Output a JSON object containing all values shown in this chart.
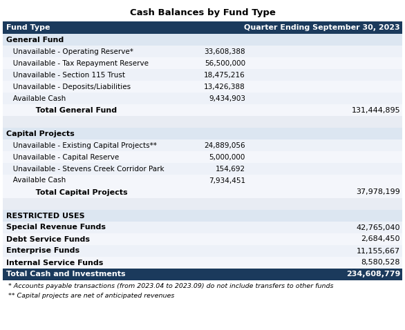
{
  "title": "Cash Balances by Fund Type",
  "header": [
    "Fund Type",
    "Quarter Ending September 30, 2023"
  ],
  "header_bg": "#1b3a5c",
  "header_fg": "#ffffff",
  "section_bg": "#dce6f1",
  "row_light": "#edf1f8",
  "row_white": "#f4f6fb",
  "subtotal_bg": "#f4f6fb",
  "blank_bg": "#e8ecf3",
  "total_bg": "#1b3a5c",
  "total_fg": "#ffffff",
  "rows": [
    {
      "type": "section_header",
      "label": "General Fund",
      "value": null,
      "right_value": null
    },
    {
      "type": "item",
      "label": "   Unavailable - Operating Reserve*",
      "value": "33,608,388",
      "right_value": null
    },
    {
      "type": "item",
      "label": "   Unavailable - Tax Repayment Reserve",
      "value": "56,500,000",
      "right_value": null
    },
    {
      "type": "item",
      "label": "   Unavailable - Section 115 Trust",
      "value": "18,475,216",
      "right_value": null
    },
    {
      "type": "item",
      "label": "   Unavailable - Deposits/Liabilities",
      "value": "13,426,388",
      "right_value": null
    },
    {
      "type": "item",
      "label": "   Available Cash",
      "value": "9,434,903",
      "right_value": null
    },
    {
      "type": "subtotal",
      "label": "           Total General Fund",
      "value": null,
      "right_value": "131,444,895"
    },
    {
      "type": "blank",
      "label": "",
      "value": null,
      "right_value": null
    },
    {
      "type": "section_header",
      "label": "Capital Projects",
      "value": null,
      "right_value": null
    },
    {
      "type": "item",
      "label": "   Unavailable - Existing Capital Projects**",
      "value": "24,889,056",
      "right_value": null
    },
    {
      "type": "item",
      "label": "   Unavailable - Capital Reserve",
      "value": "5,000,000",
      "right_value": null
    },
    {
      "type": "item",
      "label": "   Unavailable - Stevens Creek Corridor Park",
      "value": "154,692",
      "right_value": null
    },
    {
      "type": "item",
      "label": "   Available Cash",
      "value": "7,934,451",
      "right_value": null
    },
    {
      "type": "subtotal",
      "label": "           Total Capital Projects",
      "value": null,
      "right_value": "37,978,199"
    },
    {
      "type": "blank",
      "label": "",
      "value": null,
      "right_value": null
    },
    {
      "type": "restricted_header",
      "label": "RESTRICTED USES",
      "value": null,
      "right_value": null
    },
    {
      "type": "restricted_item",
      "label": "Special Revenue Funds",
      "value": null,
      "right_value": "42,765,040"
    },
    {
      "type": "restricted_item",
      "label": "Debt Service Funds",
      "value": null,
      "right_value": "2,684,450"
    },
    {
      "type": "restricted_item",
      "label": "Enterprise Funds",
      "value": null,
      "right_value": "11,155,667"
    },
    {
      "type": "restricted_item",
      "label": "Internal Service Funds",
      "value": null,
      "right_value": "8,580,528"
    },
    {
      "type": "grand_total",
      "label": "Total Cash and Investments",
      "value": null,
      "right_value": "234,608,779"
    }
  ],
  "footnotes": [
    " * Accounts payable transactions (from 2023.04 to 2023.09) do not include transfers to other funds",
    " ** Capital projects are net of anticipated revenues"
  ],
  "fig_width": 5.86,
  "fig_height": 4.78,
  "dpi": 100
}
